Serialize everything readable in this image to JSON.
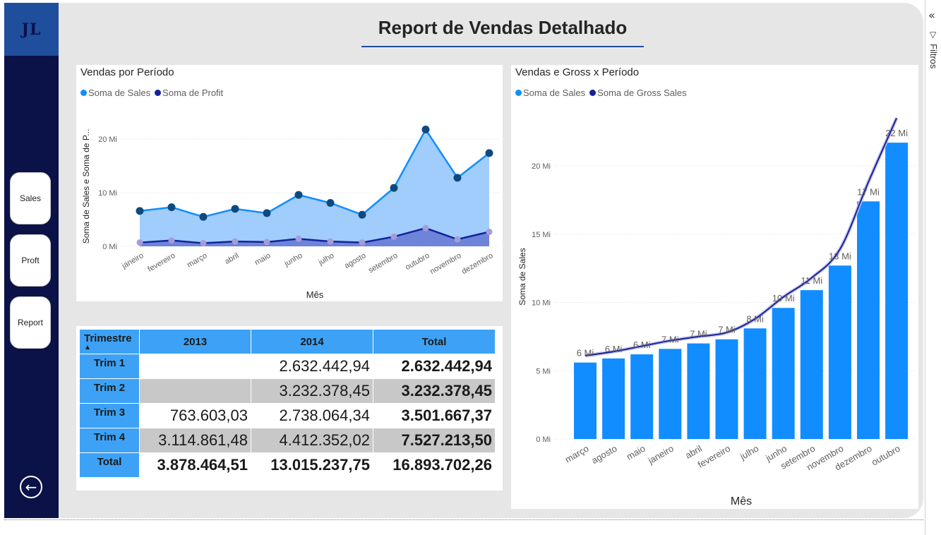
{
  "page": {
    "title": "Report de Vendas Detalhado"
  },
  "logo": {
    "text": "JL"
  },
  "nav": {
    "items": [
      {
        "label": "Sales"
      },
      {
        "label": "Proft"
      },
      {
        "label": "Report"
      }
    ],
    "back_icon": "arrow-left-circle-icon"
  },
  "filters_rail": {
    "label": "Filtros",
    "collapse_icon": "double-chevron-left-icon",
    "filter_icon": "funnel-icon"
  },
  "colors": {
    "sales": "#118dff",
    "profit": "#12239e",
    "area_sales": "#a0cdfb",
    "area_profit": "#6d84d8",
    "header_blue": "#3da2f5",
    "nav_bg": "#0b1247"
  },
  "chart_data": [
    {
      "type": "area",
      "title": "Vendas por Período",
      "legend": [
        "Soma de Sales",
        "Soma de Profit"
      ],
      "xlabel": "Mês",
      "ylabel": "Soma de Sales e Soma de P...",
      "categories": [
        "janeiro",
        "fevereiro",
        "março",
        "abril",
        "maio",
        "junho",
        "julho",
        "agosto",
        "setembro",
        "outubro",
        "novembro",
        "dezembro"
      ],
      "yticks": [
        "0 Mi",
        "10 Mi",
        "20 Mi"
      ],
      "ylim": [
        0,
        22
      ],
      "series": [
        {
          "name": "Soma de Sales",
          "values": [
            6.6,
            7.3,
            5.5,
            7.0,
            6.2,
            9.6,
            8.1,
            5.9,
            10.9,
            21.8,
            12.8,
            17.4
          ]
        },
        {
          "name": "Soma de Profit",
          "values": [
            0.7,
            1.1,
            0.6,
            0.9,
            0.8,
            1.4,
            0.9,
            0.7,
            1.8,
            3.4,
            1.3,
            2.7
          ]
        }
      ]
    },
    {
      "type": "bar",
      "title": "Vendas e Gross x Período",
      "legend": [
        "Soma de Sales",
        "Soma de Gross Sales"
      ],
      "xlabel": "Mês",
      "ylabel": "Soma de Sales",
      "categories": [
        "março",
        "agosto",
        "maio",
        "janeiro",
        "abril",
        "fevereiro",
        "julho",
        "junho",
        "setembro",
        "novembro",
        "dezembro",
        "outubro"
      ],
      "yticks": [
        "0 Mi",
        "5 Mi",
        "10 Mi",
        "15 Mi",
        "20 Mi"
      ],
      "ylim": [
        0,
        24
      ],
      "series": [
        {
          "name": "Soma de Sales",
          "values": [
            5.6,
            5.9,
            6.2,
            6.6,
            7.0,
            7.3,
            8.1,
            9.6,
            10.9,
            12.7,
            17.4,
            21.7
          ],
          "labels": [
            "6 Mi",
            "6 Mi",
            "6 Mi",
            "7 Mi",
            "7 Mi",
            "7 Mi",
            "8 Mi",
            "10 Mi",
            "11 Mi",
            "13 Mi",
            "17 Mi",
            "22 Mi"
          ]
        },
        {
          "name": "Soma de Gross Sales",
          "values": [
            6.1,
            6.4,
            6.8,
            7.2,
            7.5,
            7.8,
            8.8,
            10.4,
            11.8,
            13.9,
            18.8,
            23.5
          ]
        }
      ]
    },
    {
      "type": "table",
      "columns": [
        "Trimestre",
        "2013",
        "2014",
        "Total"
      ],
      "rows": [
        {
          "label": "Trim 1",
          "c2013": "",
          "c2014": "2.632.442,94",
          "total": "2.632.442,94"
        },
        {
          "label": "Trim 2",
          "c2013": "",
          "c2014": "3.232.378,45",
          "total": "3.232.378,45"
        },
        {
          "label": "Trim 3",
          "c2013": "763.603,03",
          "c2014": "2.738.064,34",
          "total": "3.501.667,37"
        },
        {
          "label": "Trim 4",
          "c2013": "3.114.861,48",
          "c2014": "4.412.352,02",
          "total": "7.527.213,50"
        }
      ],
      "total_row": {
        "label": "Total",
        "c2013": "3.878.464,51",
        "c2014": "13.015.237,75",
        "total": "16.893.702,26"
      },
      "sort_icon": "sort-ascending-icon"
    }
  ]
}
